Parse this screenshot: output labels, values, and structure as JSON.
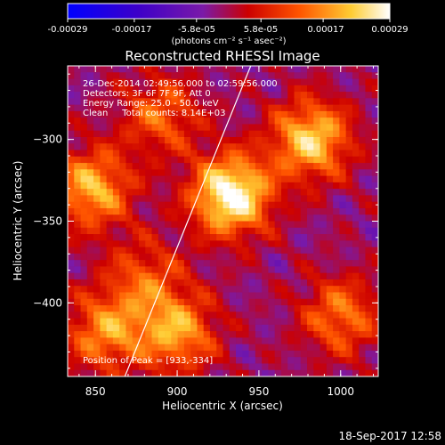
{
  "colorbar": {
    "tick_labels": [
      "-0.00029",
      "-0.00017",
      "-5.8e-05",
      "5.8e-05",
      "0.00017",
      "0.00029"
    ],
    "tick_values": [
      -0.00029,
      -0.00017,
      -5.8e-05,
      5.8e-05,
      0.00017,
      0.00029
    ],
    "range": [
      -0.00029,
      0.00029
    ],
    "units_label": "(photons cm⁻² s⁻¹ asec⁻²)",
    "colormap": [
      "#0000ff",
      "#3d00c8",
      "#7a1aa8",
      "#cc0000",
      "#ff5500",
      "#ffcc33",
      "#ffffff"
    ]
  },
  "chart_data": {
    "type": "heatmap",
    "title": "Reconstructed RHESSI Image",
    "xlabel": "Heliocentric X (arcsec)",
    "ylabel": "Heliocentric Y (arcsec)",
    "xlim": [
      833,
      1023
    ],
    "ylim": [
      -445,
      -255
    ],
    "x_ticks": [
      850,
      900,
      950,
      1000
    ],
    "y_ticks": [
      -300,
      -350,
      -400
    ],
    "annotation_lines": [
      "26-Dec-2014 02:49:56.000 to 02:59:56.000",
      "Detectors: 3F 6F 7F 9F, Att 0",
      "Energy Range: 25.0 - 50.0 keV",
      "Clean     Total counts: 8.14E+03"
    ],
    "peak_label": "Position of Peak = [933,-334]",
    "peak": [
      933,
      -334
    ],
    "limb_line": {
      "points": [
        [
          868,
          -445
        ],
        [
          945,
          -255
        ]
      ]
    },
    "sources": [
      {
        "x": 933,
        "y": -334,
        "value": 0.00029
      },
      {
        "x": 982,
        "y": -300,
        "value": 0.00021
      },
      {
        "x": 848,
        "y": -330,
        "value": 0.00018
      },
      {
        "x": 900,
        "y": -418,
        "value": 0.00016
      },
      {
        "x": 856,
        "y": -418,
        "value": 0.00014
      },
      {
        "x": 1000,
        "y": -408,
        "value": 0.00012
      },
      {
        "x": 890,
        "y": -285,
        "value": 0.0001
      },
      {
        "x": 880,
        "y": -385,
        "value": 8e-05
      }
    ]
  },
  "footer": {
    "timestamp": "18-Sep-2017 12:58"
  }
}
